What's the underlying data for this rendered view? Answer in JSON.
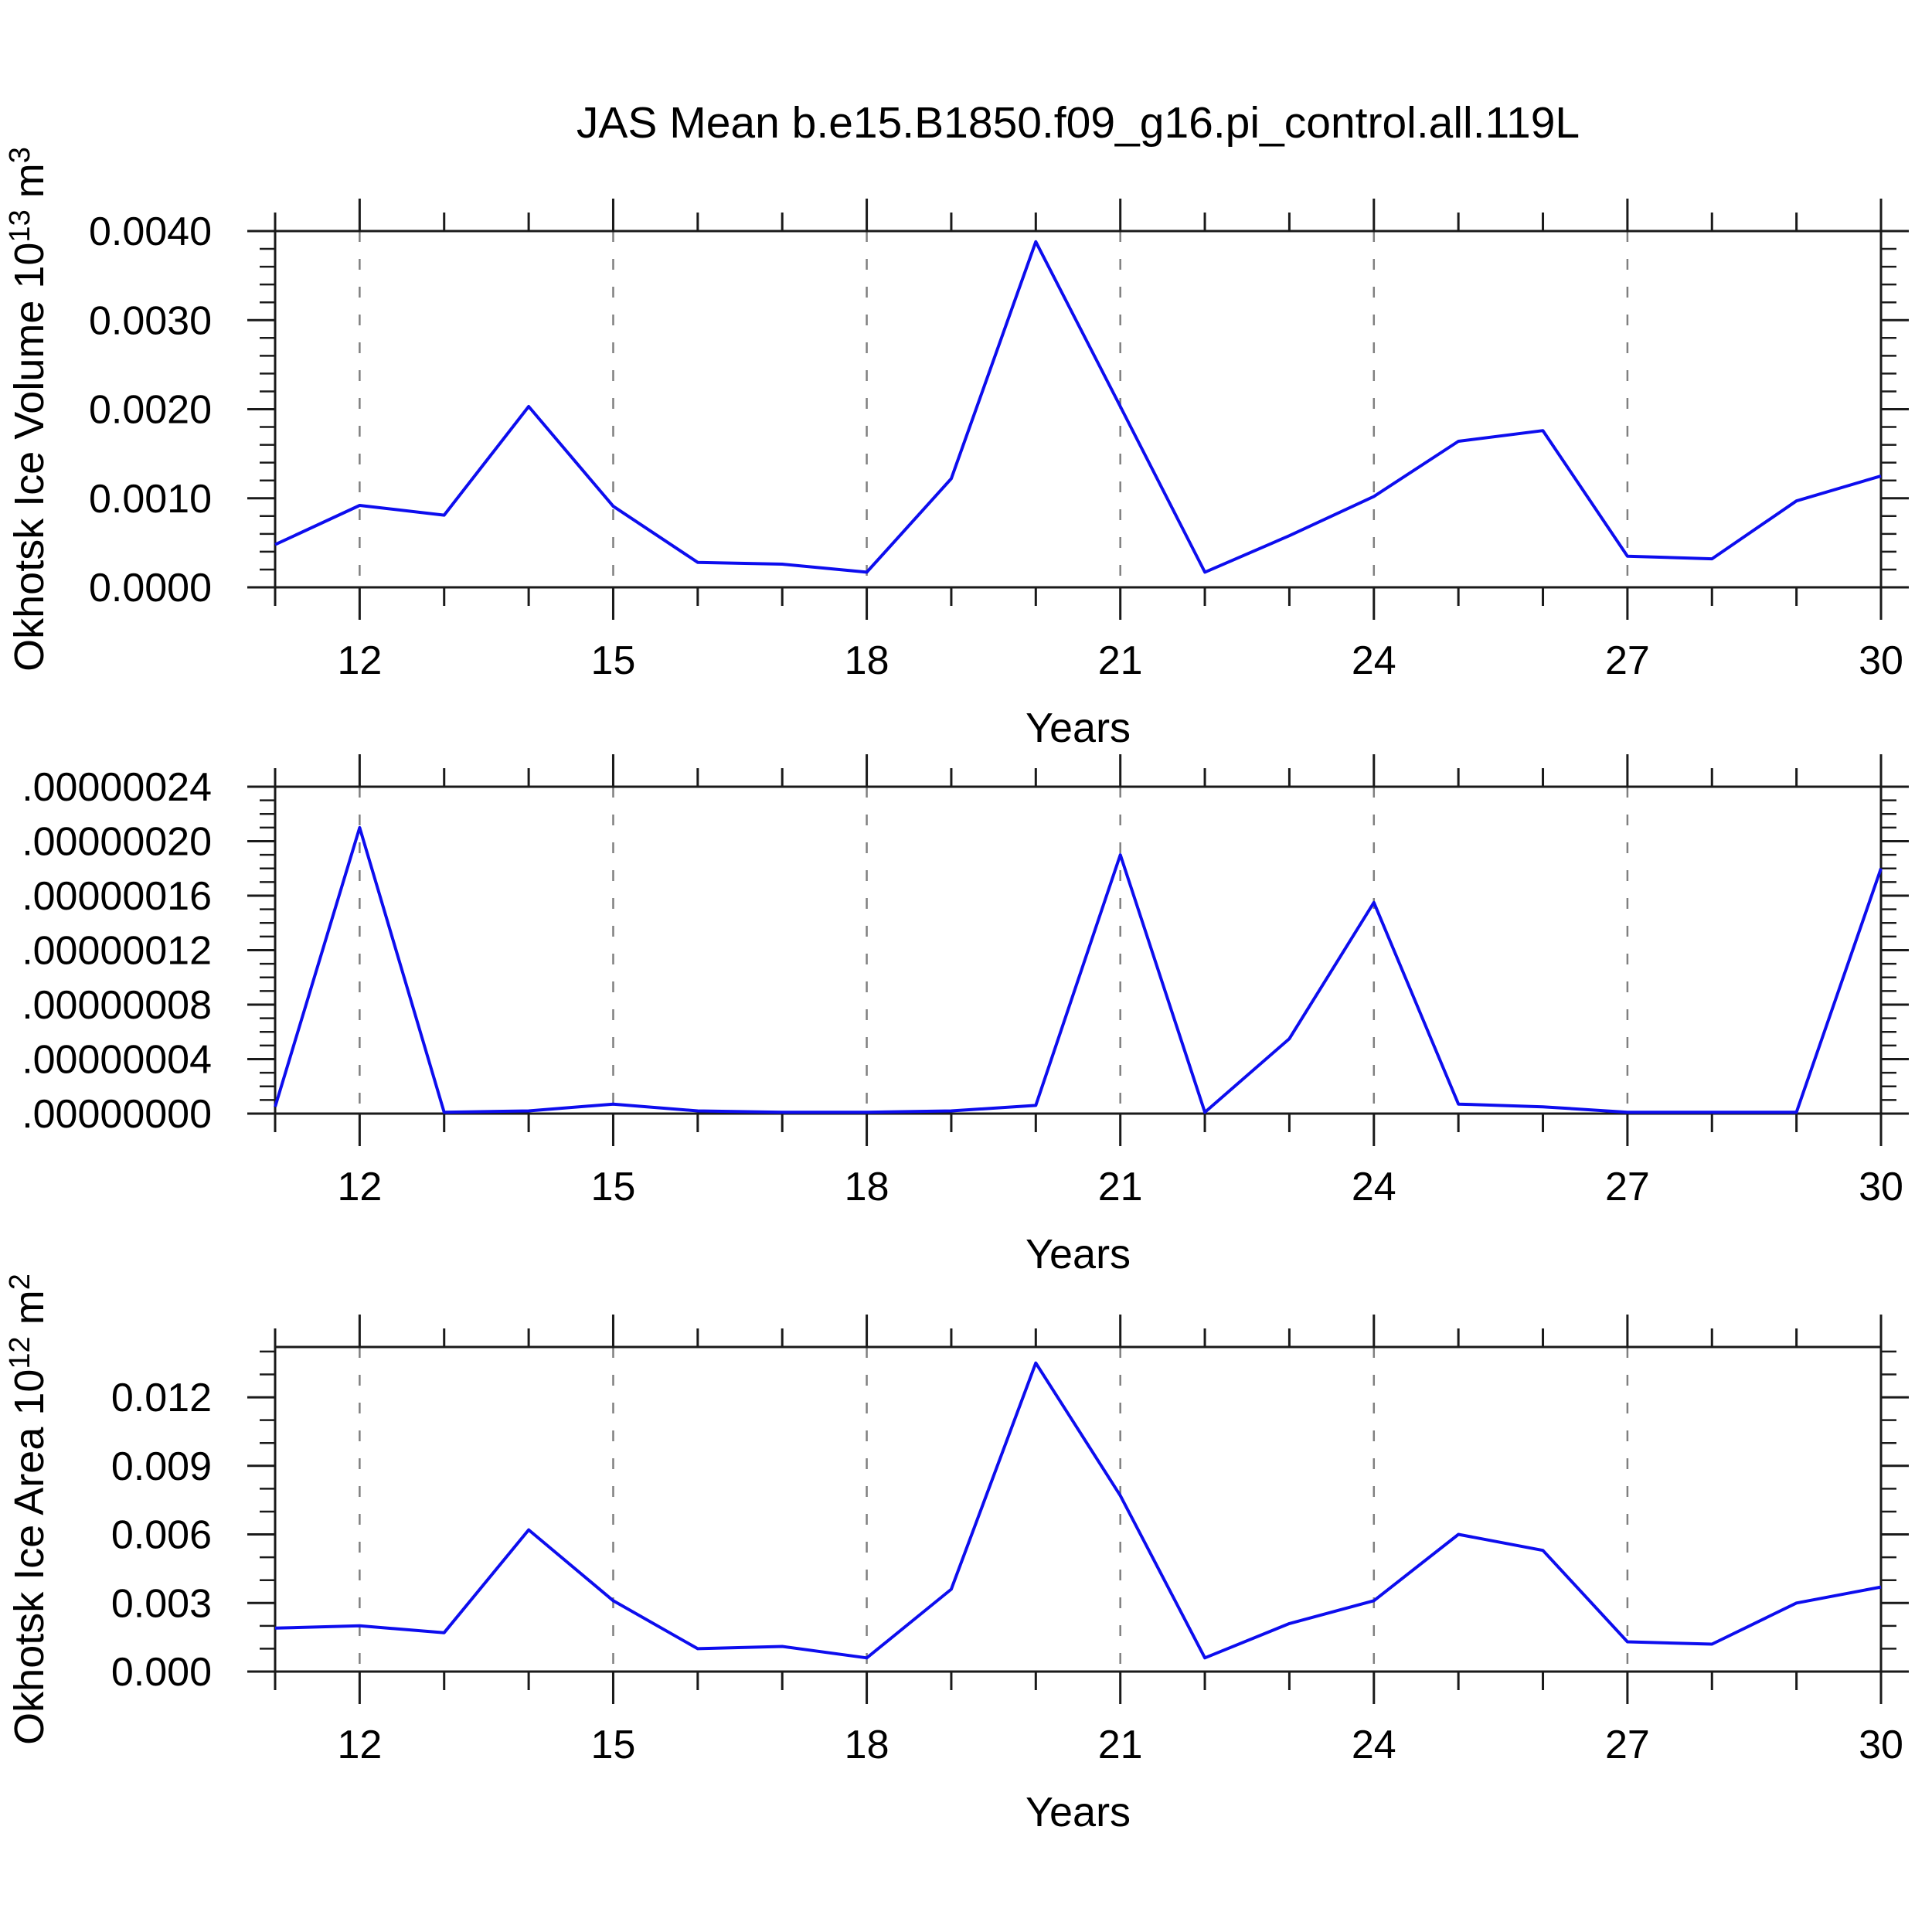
{
  "title": "JAS Mean b.e15.B1850.f09_g16.pi_control.all.119L",
  "line_color": "#0d0dee",
  "grid_color": "#808080",
  "axis_color": "#1a1a1a",
  "chart_data": [
    {
      "type": "line",
      "title": "",
      "xlabel": "Years",
      "ylabel_text": "Okhotsk Ice Volume 10^13 m^3",
      "ylabel_parts": [
        {
          "t": "Okhotsk Ice Volume 10"
        },
        {
          "t": "13",
          "sup": true
        },
        {
          "t": " m"
        },
        {
          "t": "3",
          "sup": true
        }
      ],
      "x": [
        11,
        12,
        13,
        14,
        15,
        16,
        17,
        18,
        19,
        20,
        21,
        22,
        23,
        24,
        25,
        26,
        27,
        28,
        29,
        30
      ],
      "values": [
        0.00048,
        0.00092,
        0.00081,
        0.00203,
        0.00091,
        0.00028,
        0.00026,
        0.00017,
        0.00122,
        0.00388,
        0.00203,
        0.00017,
        0.00058,
        0.00102,
        0.00164,
        0.00176,
        0.00035,
        0.00032,
        0.00097,
        0.00125
      ],
      "xlim": [
        11,
        30
      ],
      "ylim": [
        0,
        0.004
      ],
      "y_ticks": [
        {
          "v": 0.004,
          "label": "0.0040"
        },
        {
          "v": 0.003,
          "label": "0.0030"
        },
        {
          "v": 0.002,
          "label": "0.0020"
        },
        {
          "v": 0.001,
          "label": "0.0010"
        },
        {
          "v": 0.0,
          "label": "0.0000"
        }
      ],
      "y_minor_step": 0.0002,
      "x_major_ticks": [
        12,
        15,
        18,
        21,
        24,
        27,
        30
      ],
      "x_minor_step": 1,
      "x_gridlines": [
        12,
        15,
        18,
        21,
        24,
        27
      ],
      "grid": "vertical-dashed",
      "legend": "none"
    },
    {
      "type": "line",
      "title": "",
      "xlabel": "Years",
      "ylabel_text": "",
      "ylabel_parts": [],
      "x": [
        11,
        12,
        13,
        14,
        15,
        16,
        17,
        18,
        19,
        20,
        21,
        22,
        23,
        24,
        25,
        26,
        27,
        28,
        29,
        30
      ],
      "values": [
        5e-09,
        2.1e-07,
        1e-09,
        2e-09,
        7e-09,
        2e-09,
        1e-09,
        1e-09,
        2e-09,
        6e-09,
        1.9e-07,
        1e-09,
        5.5e-08,
        1.55e-07,
        7e-09,
        5e-09,
        1e-09,
        1e-09,
        1e-09,
        1.8e-07
      ],
      "xlim": [
        11,
        30
      ],
      "ylim": [
        0,
        2.4e-07
      ],
      "y_ticks": [
        {
          "v": 2.4e-07,
          "label": ".00000024"
        },
        {
          "v": 2e-07,
          "label": ".00000020"
        },
        {
          "v": 1.6e-07,
          "label": ".00000016"
        },
        {
          "v": 1.2e-07,
          "label": ".00000012"
        },
        {
          "v": 8e-08,
          "label": ".00000008"
        },
        {
          "v": 4e-08,
          "label": ".00000004"
        },
        {
          "v": 0.0,
          "label": ".00000000"
        }
      ],
      "y_minor_step": 1e-08,
      "x_major_ticks": [
        12,
        15,
        18,
        21,
        24,
        27,
        30
      ],
      "x_minor_step": 1,
      "x_gridlines": [
        12,
        15,
        18,
        21,
        24,
        27
      ],
      "grid": "vertical-dashed",
      "legend": "none"
    },
    {
      "type": "line",
      "title": "",
      "xlabel": "Years",
      "ylabel_text": "Okhotsk Ice Area 10^12 m^2",
      "ylabel_parts": [
        {
          "t": "Okhotsk Ice Area 10"
        },
        {
          "t": "12",
          "sup": true
        },
        {
          "t": " m"
        },
        {
          "t": "2",
          "sup": true
        }
      ],
      "x": [
        11,
        12,
        13,
        14,
        15,
        16,
        17,
        18,
        19,
        20,
        21,
        22,
        23,
        24,
        25,
        26,
        27,
        28,
        29,
        30
      ],
      "values": [
        0.0019,
        0.002,
        0.0017,
        0.0062,
        0.0031,
        0.001,
        0.0011,
        0.0006,
        0.0036,
        0.0135,
        0.0077,
        0.0006,
        0.0021,
        0.0031,
        0.006,
        0.0053,
        0.0013,
        0.0012,
        0.003,
        0.0037
      ],
      "xlim": [
        11,
        30
      ],
      "ylim": [
        0,
        0.0142
      ],
      "y_ticks": [
        {
          "v": 0.012,
          "label": "0.012"
        },
        {
          "v": 0.009,
          "label": "0.009"
        },
        {
          "v": 0.006,
          "label": "0.006"
        },
        {
          "v": 0.003,
          "label": "0.003"
        },
        {
          "v": 0.0,
          "label": "0.000"
        }
      ],
      "y_minor_step": 0.001,
      "x_major_ticks": [
        12,
        15,
        18,
        21,
        24,
        27,
        30
      ],
      "x_minor_step": 1,
      "x_gridlines": [
        12,
        15,
        18,
        21,
        24,
        27
      ],
      "grid": "vertical-dashed",
      "legend": "none"
    }
  ]
}
